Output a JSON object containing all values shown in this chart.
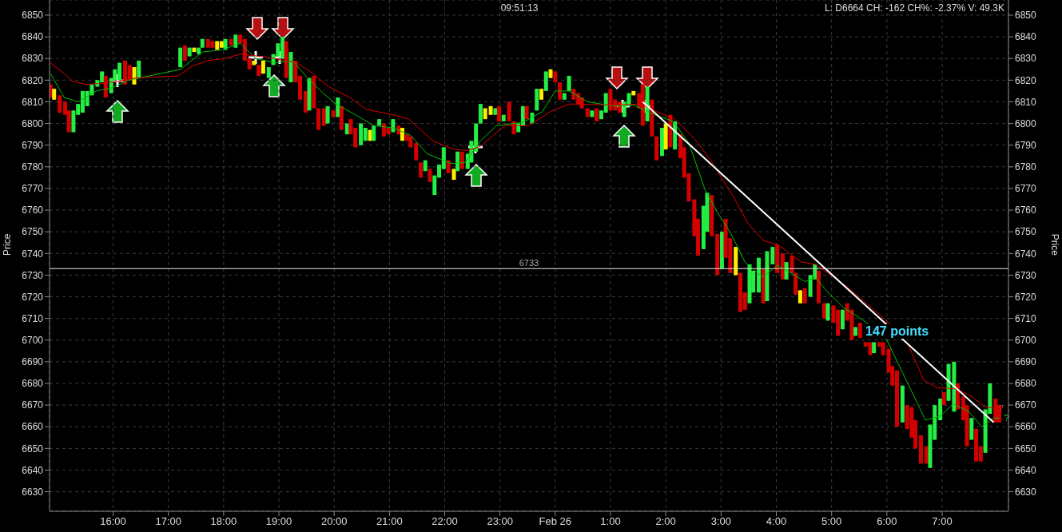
{
  "chart_data": {
    "type": "candlestick",
    "ylabel": "Price",
    "y2label": "Price",
    "annotations": [
      "09:51:13",
      "L: D6664 CH: -162 CH%: -2.37% V: 49.3K",
      "147 points",
      {
        "text": "?",
        "x": "--02-26T07:56",
        "y": 6668.5
      },
      {
        "text": "?",
        "x": "--02-26T08:02",
        "y": 6664
      }
    ],
    "xlim": [
      "--02-25T14:51",
      "--02-26T08:12"
    ],
    "xticks": [
      {
        "value": "--02-25T16:00",
        "label": "16:00"
      },
      {
        "value": "--02-25T17:00",
        "label": "17:00"
      },
      {
        "value": "--02-25T18:00",
        "label": "18:00"
      },
      {
        "value": "--02-25T19:00",
        "label": "19:00"
      },
      {
        "value": "--02-25T20:00",
        "label": "20:00"
      },
      {
        "value": "--02-25T21:00",
        "label": "21:00"
      },
      {
        "value": "--02-25T22:00",
        "label": "22:00"
      },
      {
        "value": "--02-25T23:00",
        "label": "23:00"
      },
      {
        "value": "--02-26T00:00",
        "label": "Feb 26"
      },
      {
        "value": "--02-26T01:00",
        "label": "1:00"
      },
      {
        "value": "--02-26T02:00",
        "label": "2:00"
      },
      {
        "value": "--02-26T03:00",
        "label": "3:00"
      },
      {
        "value": "--02-26T04:00",
        "label": "4:00"
      },
      {
        "value": "--02-26T05:00",
        "label": "5:00"
      },
      {
        "value": "--02-26T06:00",
        "label": "6:00"
      },
      {
        "value": "--02-26T07:00",
        "label": "7:00"
      }
    ],
    "ylim": [
      6621,
      6857
    ],
    "yticks": [
      6630,
      6640,
      6650,
      6660,
      6670,
      6680,
      6690,
      6700,
      6710,
      6720,
      6730,
      6740,
      6750,
      6760,
      6770,
      6780,
      6790,
      6800,
      6810,
      6820,
      6830,
      6840,
      6850
    ],
    "y2lim": [
      6621,
      6857
    ],
    "y2ticks": [
      6630,
      6640,
      6650,
      6660,
      6670,
      6680,
      6690,
      6700,
      6710,
      6720,
      6730,
      6740,
      6750,
      6760,
      6770,
      6780,
      6790,
      6800,
      6810,
      6820,
      6830,
      6840,
      6850
    ],
    "grid": true,
    "ref_lines": [
      {
        "axis": "y",
        "value": 6733,
        "label": "6733",
        "color": "#e8e8d8"
      }
    ],
    "x": [
      "--02-25T14:52",
      "--02-25T14:56",
      "--02-25T15:02",
      "--02-25T15:08",
      "--02-25T15:12",
      "--02-25T15:17",
      "--02-25T15:22",
      "--02-25T15:27",
      "--02-25T15:32",
      "--02-25T15:37",
      "--02-25T15:43",
      "--02-25T15:48",
      "--02-25T15:52",
      "--02-25T15:58",
      "--02-25T16:02",
      "--02-25T16:07",
      "--02-25T16:13",
      "--02-25T16:18",
      "--02-25T16:23",
      "--02-25T16:28",
      "--02-25T17:13",
      "--02-25T17:18",
      "--02-25T17:23",
      "--02-25T17:28",
      "--02-25T17:33",
      "--02-25T17:37",
      "--02-25T17:43",
      "--02-25T17:48",
      "--02-25T17:53",
      "--02-25T17:58",
      "--02-25T18:02",
      "--02-25T18:08",
      "--02-25T18:13",
      "--02-25T18:18",
      "--02-25T18:23",
      "--02-25T18:28",
      "--02-25T18:33",
      "--02-25T18:38",
      "--02-25T18:43",
      "--02-25T18:49",
      "--02-25T18:54",
      "--02-25T18:59",
      "--02-25T19:04",
      "--02-25T19:08",
      "--02-25T19:13",
      "--02-25T19:18",
      "--02-25T19:23",
      "--02-25T19:29",
      "--02-25T19:33",
      "--02-25T19:38",
      "--02-25T19:43",
      "--02-25T19:49",
      "--02-25T19:53",
      "--02-25T19:59",
      "--02-25T20:04",
      "--02-25T20:08",
      "--02-25T20:14",
      "--02-25T20:18",
      "--02-25T20:23",
      "--02-25T20:29",
      "--02-25T20:34",
      "--02-25T20:39",
      "--02-25T20:43",
      "--02-25T20:49",
      "--02-25T20:54",
      "--02-25T20:59",
      "--02-25T21:04",
      "--02-25T21:10",
      "--02-25T21:14",
      "--02-25T21:19",
      "--02-25T21:23",
      "--02-25T21:29",
      "--02-25T21:34",
      "--02-25T21:39",
      "--02-25T21:44",
      "--02-25T21:49",
      "--02-25T21:54",
      "--02-25T21:59",
      "--02-25T22:04",
      "--02-25T22:10",
      "--02-25T22:14",
      "--02-25T22:19",
      "--02-25T22:25",
      "--02-25T22:29",
      "--02-25T22:34",
      "--02-25T22:39",
      "--02-25T22:44",
      "--02-25T22:50",
      "--02-25T22:55",
      "--02-25T22:59",
      "--02-25T23:04",
      "--02-25T23:10",
      "--02-25T23:15",
      "--02-25T23:20",
      "--02-25T23:25",
      "--02-25T23:29",
      "--02-25T23:35",
      "--02-25T23:40",
      "--02-25T23:45",
      "--02-25T23:50",
      "--02-25T23:55",
      "--02-26T00:00",
      "--02-26T00:05",
      "--02-26T00:10",
      "--02-26T00:15",
      "--02-26T00:20",
      "--02-26T00:25",
      "--02-26T00:29",
      "--02-26T00:35",
      "--02-26T00:40",
      "--02-26T00:45",
      "--02-26T00:50",
      "--02-26T00:55",
      "--02-26T01:00",
      "--02-26T01:05",
      "--02-26T01:10",
      "--02-26T01:15",
      "--02-26T01:20",
      "--02-26T01:25",
      "--02-26T01:31",
      "--02-26T01:35",
      "--02-26T01:40",
      "--02-26T01:45",
      "--02-26T01:50",
      "--02-26T01:56",
      "--02-26T02:00",
      "--02-26T02:05",
      "--02-26T02:10",
      "--02-26T02:16",
      "--02-26T02:20",
      "--02-26T02:25",
      "--02-26T02:31",
      "--02-26T02:35",
      "--02-26T02:41",
      "--02-26T02:45",
      "--02-26T02:50",
      "--02-26T02:56",
      "--02-26T03:01",
      "--02-26T03:05",
      "--02-26T03:10",
      "--02-26T03:16",
      "--02-26T03:21",
      "--02-26T03:26",
      "--02-26T03:31",
      "--02-26T03:35",
      "--02-26T03:41",
      "--02-26T03:46",
      "--02-26T03:50",
      "--02-26T03:56",
      "--02-26T04:01",
      "--02-26T04:07",
      "--02-26T04:11",
      "--02-26T04:17",
      "--02-26T04:21",
      "--02-26T04:26",
      "--02-26T04:31",
      "--02-26T04:37",
      "--02-26T04:42",
      "--02-26T04:46",
      "--02-26T04:52",
      "--02-26T04:56",
      "--02-26T05:02",
      "--02-26T05:07",
      "--02-26T05:12",
      "--02-26T05:17",
      "--02-26T05:22",
      "--02-26T05:26",
      "--02-26T05:31",
      "--02-26T05:37",
      "--02-26T05:42",
      "--02-26T05:46",
      "--02-26T05:52",
      "--02-26T05:56",
      "--02-26T06:02",
      "--02-26T06:06",
      "--02-26T06:11",
      "--02-26T06:17",
      "--02-26T06:22",
      "--02-26T06:27",
      "--02-26T06:31",
      "--02-26T06:37",
      "--02-26T06:43",
      "--02-26T06:47",
      "--02-26T06:52",
      "--02-26T06:58",
      "--02-26T07:02",
      "--02-26T07:07",
      "--02-26T07:13",
      "--02-26T07:17",
      "--02-26T07:23",
      "--02-26T07:27",
      "--02-26T07:32",
      "--02-26T07:37",
      "--02-26T07:42",
      "--02-26T07:47",
      "--02-26T07:52",
      "--02-26T07:58",
      "--02-26T08:02"
    ],
    "ohlc": [
      [
        6818,
        6818,
        6812,
        6812
      ],
      [
        6811,
        6816,
        6811,
        6816
      ],
      [
        6813,
        6813,
        6805,
        6805
      ],
      [
        6810,
        6810,
        6804,
        6804
      ],
      [
        6806,
        6806,
        6796,
        6796
      ],
      [
        6796,
        6806,
        6796,
        6806
      ],
      [
        6804,
        6809,
        6804,
        6809
      ],
      [
        6805,
        6815,
        6805,
        6815
      ],
      [
        6808,
        6815,
        6808,
        6815
      ],
      [
        6813,
        6818,
        6813,
        6818
      ],
      [
        6817,
        6820,
        6817,
        6820
      ],
      [
        6819,
        6824,
        6819,
        6824
      ],
      [
        6822,
        6822,
        6812,
        6812
      ],
      [
        6814,
        6821,
        6814,
        6821
      ],
      [
        6820,
        6825,
        6820,
        6825
      ],
      [
        6820,
        6828,
        6820,
        6828
      ],
      [
        6829,
        6829,
        6818,
        6818
      ],
      [
        6827,
        6827,
        6820,
        6820
      ],
      [
        6818,
        6826,
        6818,
        6826
      ],
      [
        6821,
        6829,
        6821,
        6829
      ],
      [
        6826,
        6835,
        6826,
        6835
      ],
      [
        6836,
        6836,
        6829,
        6829
      ],
      [
        6831,
        6835,
        6831,
        6835
      ],
      [
        6833,
        6835,
        6833,
        6835
      ],
      [
        6832,
        6835,
        6832,
        6835
      ],
      [
        6835,
        6839,
        6835,
        6839
      ],
      [
        6839,
        6839,
        6835,
        6835
      ],
      [
        6838,
        6838,
        6835,
        6835
      ],
      [
        6834,
        6838,
        6834,
        6838
      ],
      [
        6835,
        6838,
        6835,
        6838
      ],
      [
        6834,
        6839,
        6834,
        6839
      ],
      [
        6839,
        6839,
        6836,
        6836
      ],
      [
        6835,
        6841,
        6835,
        6841
      ],
      [
        6841,
        6841,
        6837,
        6837
      ],
      [
        6839,
        6839,
        6829,
        6829
      ],
      [
        6830,
        6830,
        6825,
        6825
      ],
      [
        6827,
        6829,
        6827,
        6829
      ],
      [
        6827,
        6827,
        6822,
        6822
      ],
      [
        6823,
        6829,
        6823,
        6829
      ],
      [
        6821,
        6826,
        6821,
        6826
      ],
      [
        6827,
        6832,
        6827,
        6832
      ],
      [
        6831,
        6837,
        6831,
        6837
      ],
      [
        6830,
        6840,
        6830,
        6840
      ],
      [
        6838,
        6838,
        6821,
        6821
      ],
      [
        6819,
        6833,
        6819,
        6833
      ],
      [
        6829,
        6829,
        6819,
        6819
      ],
      [
        6822,
        6822,
        6811,
        6811
      ],
      [
        6815,
        6815,
        6805,
        6805
      ],
      [
        6806,
        6821,
        6806,
        6821
      ],
      [
        6822,
        6822,
        6807,
        6807
      ],
      [
        6807,
        6807,
        6797,
        6797
      ],
      [
        6807,
        6807,
        6799,
        6799
      ],
      [
        6800,
        6808,
        6800,
        6808
      ],
      [
        6806,
        6806,
        6803,
        6803
      ],
      [
        6803,
        6812,
        6803,
        6812
      ],
      [
        6808,
        6808,
        6797,
        6797
      ],
      [
        6795,
        6800,
        6795,
        6800
      ],
      [
        6802,
        6802,
        6795,
        6795
      ],
      [
        6798,
        6798,
        6789,
        6789
      ],
      [
        6790,
        6800,
        6790,
        6800
      ],
      [
        6792,
        6798,
        6792,
        6798
      ],
      [
        6792,
        6797,
        6792,
        6797
      ],
      [
        6792,
        6799,
        6792,
        6799
      ],
      [
        6799,
        6802,
        6799,
        6802
      ],
      [
        6800,
        6800,
        6794,
        6794
      ],
      [
        6798,
        6798,
        6795,
        6795
      ],
      [
        6796,
        6802,
        6796,
        6802
      ],
      [
        6799,
        6799,
        6795,
        6795
      ],
      [
        6792,
        6798,
        6792,
        6798
      ],
      [
        6795,
        6795,
        6792,
        6792
      ],
      [
        6794,
        6794,
        6789,
        6789
      ],
      [
        6791,
        6791,
        6783,
        6783
      ],
      [
        6782,
        6782,
        6775,
        6775
      ],
      [
        6778,
        6783,
        6778,
        6783
      ],
      [
        6779,
        6779,
        6773,
        6773
      ],
      [
        6767,
        6776,
        6767,
        6776
      ],
      [
        6775,
        6781,
        6775,
        6781
      ],
      [
        6779,
        6789,
        6779,
        6789
      ],
      [
        6783,
        6783,
        6777,
        6777
      ],
      [
        6774,
        6779,
        6774,
        6779
      ],
      [
        6778,
        6787,
        6778,
        6787
      ],
      [
        6787,
        6787,
        6779,
        6779
      ],
      [
        6779,
        6786,
        6779,
        6786
      ],
      [
        6782,
        6792,
        6782,
        6792
      ],
      [
        6787,
        6800,
        6787,
        6800
      ],
      [
        6800,
        6809,
        6800,
        6809
      ],
      [
        6802,
        6807,
        6802,
        6807
      ],
      [
        6804,
        6808,
        6804,
        6808
      ],
      [
        6804,
        6807,
        6804,
        6807
      ],
      [
        6808,
        6808,
        6801,
        6801
      ],
      [
        6801,
        6804,
        6801,
        6804
      ],
      [
        6810,
        6810,
        6801,
        6801
      ],
      [
        6801,
        6801,
        6795,
        6795
      ],
      [
        6796,
        6800,
        6796,
        6800
      ],
      [
        6799,
        6808,
        6799,
        6808
      ],
      [
        6808,
        6808,
        6802,
        6802
      ],
      [
        6800,
        6805,
        6800,
        6805
      ],
      [
        6806,
        6816,
        6806,
        6816
      ],
      [
        6811,
        6816,
        6811,
        6816
      ],
      [
        6815,
        6824,
        6815,
        6824
      ],
      [
        6821,
        6825,
        6821,
        6825
      ],
      [
        6824,
        6824,
        6819,
        6819
      ],
      [
        6819,
        6819,
        6811,
        6811
      ],
      [
        6811,
        6814,
        6811,
        6814
      ],
      [
        6815,
        6822,
        6815,
        6822
      ],
      [
        6816,
        6816,
        6811,
        6811
      ],
      [
        6814,
        6814,
        6809,
        6809
      ],
      [
        6812,
        6812,
        6807,
        6807
      ],
      [
        6807,
        6807,
        6803,
        6803
      ],
      [
        6803,
        6806,
        6803,
        6806
      ],
      [
        6807,
        6807,
        6801,
        6801
      ],
      [
        6802,
        6806,
        6802,
        6806
      ],
      [
        6805,
        6814,
        6805,
        6814
      ],
      [
        6816,
        6816,
        6806,
        6806
      ],
      [
        6811,
        6811,
        6806,
        6806
      ],
      [
        6810,
        6810,
        6805,
        6805
      ],
      [
        6803,
        6810,
        6803,
        6810
      ],
      [
        6808,
        6814,
        6808,
        6814
      ],
      [
        6813,
        6815,
        6813,
        6815
      ],
      [
        6814,
        6814,
        6807,
        6807
      ],
      [
        6818,
        6818,
        6799,
        6799
      ],
      [
        6801,
        6817,
        6801,
        6817
      ],
      [
        6811,
        6811,
        6794,
        6794
      ],
      [
        6794,
        6794,
        6783,
        6783
      ],
      [
        6785,
        6798,
        6785,
        6798
      ],
      [
        6788,
        6800,
        6788,
        6800
      ],
      [
        6804,
        6804,
        6789,
        6789
      ],
      [
        6788,
        6801,
        6788,
        6801
      ],
      [
        6795,
        6795,
        6784,
        6784
      ],
      [
        6789,
        6789,
        6775,
        6775
      ],
      [
        6777,
        6777,
        6764,
        6764
      ],
      [
        6765,
        6765,
        6748,
        6748
      ],
      [
        6756,
        6756,
        6739,
        6739
      ],
      [
        6742,
        6762,
        6742,
        6762
      ],
      [
        6750,
        6768,
        6750,
        6768
      ],
      [
        6767,
        6767,
        6748,
        6748
      ],
      [
        6749,
        6749,
        6730,
        6730
      ],
      [
        6733,
        6750,
        6733,
        6750
      ],
      [
        6756,
        6756,
        6738,
        6738
      ],
      [
        6747,
        6747,
        6731,
        6731
      ],
      [
        6730,
        6743,
        6730,
        6743
      ],
      [
        6731,
        6731,
        6713,
        6713
      ],
      [
        6722,
        6722,
        6714,
        6714
      ],
      [
        6717,
        6735,
        6717,
        6735
      ],
      [
        6722,
        6732,
        6722,
        6732
      ],
      [
        6722,
        6738,
        6722,
        6738
      ],
      [
        6733,
        6733,
        6717,
        6717
      ],
      [
        6718,
        6741,
        6718,
        6741
      ],
      [
        6735,
        6743,
        6735,
        6743
      ],
      [
        6744,
        6744,
        6731,
        6731
      ],
      [
        6740,
        6740,
        6728,
        6728
      ],
      [
        6728,
        6736,
        6728,
        6736
      ],
      [
        6739,
        6739,
        6731,
        6731
      ],
      [
        6731,
        6731,
        6721,
        6721
      ],
      [
        6717,
        6723,
        6717,
        6723
      ],
      [
        6724,
        6724,
        6717,
        6717
      ],
      [
        6720,
        6730,
        6720,
        6730
      ],
      [
        6728,
        6735,
        6728,
        6735
      ],
      [
        6732,
        6732,
        6717,
        6717
      ],
      [
        6717,
        6717,
        6710,
        6710
      ],
      [
        6709,
        6717,
        6709,
        6717
      ],
      [
        6716,
        6716,
        6708,
        6708
      ],
      [
        6714,
        6714,
        6702,
        6702
      ],
      [
        6705,
        6714,
        6705,
        6714
      ],
      [
        6717,
        6717,
        6709,
        6709
      ],
      [
        6714,
        6714,
        6700,
        6700
      ],
      [
        6702,
        6706,
        6702,
        6706
      ],
      [
        6708,
        6708,
        6701,
        6701
      ],
      [
        6699,
        6699,
        6697,
        6697
      ],
      [
        6699,
        6699,
        6693,
        6693
      ],
      [
        6694,
        6699,
        6694,
        6699
      ],
      [
        6699,
        6699,
        6697,
        6697
      ],
      [
        6699,
        6699,
        6693,
        6693
      ],
      [
        6696,
        6696,
        6685,
        6685
      ],
      [
        6688,
        6688,
        6679,
        6679
      ],
      [
        6686,
        6686,
        6660,
        6660
      ],
      [
        6662,
        6679,
        6662,
        6679
      ],
      [
        6670,
        6670,
        6659,
        6659
      ],
      [
        6669,
        6669,
        6655,
        6655
      ],
      [
        6663,
        6663,
        6650,
        6650
      ],
      [
        6656,
        6656,
        6643,
        6643
      ],
      [
        6651,
        6651,
        6643,
        6643
      ],
      [
        6641,
        6661,
        6641,
        6661
      ],
      [
        6654,
        6670,
        6654,
        6670
      ],
      [
        6663,
        6673,
        6663,
        6673
      ],
      [
        6676,
        6676,
        6670,
        6670
      ],
      [
        6672,
        6689,
        6672,
        6689
      ],
      [
        6667,
        6690,
        6667,
        6690
      ],
      [
        6680,
        6680,
        6668,
        6668
      ],
      [
        6674,
        6674,
        6663,
        6663
      ],
      [
        6670,
        6670,
        6651,
        6651
      ],
      [
        6654,
        6664,
        6654,
        6664
      ],
      [
        6659,
        6659,
        6644,
        6644
      ],
      [
        6651,
        6651,
        6644,
        6644
      ],
      [
        6648,
        6668,
        6648,
        6668
      ],
      [
        6666,
        6680,
        6666,
        6680
      ],
      [
        6673,
        6673,
        6662,
        6662
      ],
      [
        6670,
        6670,
        6662,
        6662
      ]
    ],
    "colors": [
      "#d40000",
      "#ffee00",
      "#d40000",
      "#d40000",
      "#d40000",
      "#22ee44",
      "#22ee44",
      "#22ee44",
      "#22ee44",
      "#22ee44",
      "#22ee44",
      "#22ee44",
      "#d40000",
      "#22ee44",
      "#22ee44",
      "#22ee44",
      "#d40000",
      "#d40000",
      "#ffee00",
      "#22ee44",
      "#22ee44",
      "#d40000",
      "#22ee44",
      "#ffee00",
      "#22ee44",
      "#22ee44",
      "#d40000",
      "#d40000",
      "#ffee00",
      "#ffee00",
      "#22ee44",
      "#d40000",
      "#22ee44",
      "#d40000",
      "#d40000",
      "#d40000",
      "#ffee00",
      "#d40000",
      "#ffee00",
      "#22ee44",
      "#22ee44",
      "#22ee44",
      "#22ee44",
      "#d40000",
      "#22ee44",
      "#d40000",
      "#d40000",
      "#d40000",
      "#22ee44",
      "#d40000",
      "#d40000",
      "#d40000",
      "#22ee44",
      "#d40000",
      "#22ee44",
      "#d40000",
      "#22ee44",
      "#d40000",
      "#d40000",
      "#22ee44",
      "#22ee44",
      "#ffee00",
      "#22ee44",
      "#22ee44",
      "#d40000",
      "#d40000",
      "#22ee44",
      "#d40000",
      "#ffee00",
      "#d40000",
      "#d40000",
      "#d40000",
      "#d40000",
      "#22ee44",
      "#d40000",
      "#22ee44",
      "#22ee44",
      "#22ee44",
      "#d40000",
      "#ffee00",
      "#22ee44",
      "#d40000",
      "#22ee44",
      "#22ee44",
      "#22ee44",
      "#22ee44",
      "#ffee00",
      "#ffee00",
      "#22ee44",
      "#d40000",
      "#22ee44",
      "#d40000",
      "#d40000",
      "#22ee44",
      "#22ee44",
      "#d40000",
      "#22ee44",
      "#22ee44",
      "#ffee00",
      "#22ee44",
      "#ffee00",
      "#d40000",
      "#d40000",
      "#22ee44",
      "#22ee44",
      "#d40000",
      "#d40000",
      "#d40000",
      "#d40000",
      "#22ee44",
      "#d40000",
      "#22ee44",
      "#22ee44",
      "#d40000",
      "#d40000",
      "#d40000",
      "#22ee44",
      "#22ee44",
      "#ffee00",
      "#d40000",
      "#d40000",
      "#22ee44",
      "#d40000",
      "#d40000",
      "#22ee44",
      "#ffee00",
      "#d40000",
      "#22ee44",
      "#d40000",
      "#d40000",
      "#d40000",
      "#d40000",
      "#d40000",
      "#22ee44",
      "#22ee44",
      "#d40000",
      "#d40000",
      "#22ee44",
      "#d40000",
      "#d40000",
      "#ffee00",
      "#d40000",
      "#d40000",
      "#22ee44",
      "#22ee44",
      "#22ee44",
      "#d40000",
      "#22ee44",
      "#22ee44",
      "#d40000",
      "#d40000",
      "#22ee44",
      "#d40000",
      "#d40000",
      "#ffee00",
      "#d40000",
      "#22ee44",
      "#22ee44",
      "#d40000",
      "#d40000",
      "#22ee44",
      "#d40000",
      "#d40000",
      "#22ee44",
      "#d40000",
      "#d40000",
      "#22ee44",
      "#d40000",
      "#d40000",
      "#d40000",
      "#22ee44",
      "#d40000",
      "#d40000",
      "#d40000",
      "#d40000",
      "#d40000",
      "#22ee44",
      "#d40000",
      "#d40000",
      "#d40000",
      "#d40000",
      "#d40000",
      "#22ee44",
      "#22ee44",
      "#22ee44",
      "#d40000",
      "#22ee44",
      "#22ee44",
      "#d40000",
      "#d40000",
      "#d40000",
      "#22ee44",
      "#d40000",
      "#d40000",
      "#22ee44",
      "#22ee44",
      "#d40000",
      "#d40000"
    ],
    "series": [
      {
        "type": "line",
        "color": "#00c000",
        "x": [
          "--02-25T14:52",
          "--02-25T15:07",
          "--02-25T15:22",
          "--02-25T15:42",
          "--02-25T15:59",
          "--02-25T16:17",
          "--02-25T16:29",
          "--02-25T17:13",
          "--02-25T17:37",
          "--02-25T17:58",
          "--02-25T18:18",
          "--02-25T18:35",
          "--02-25T18:56",
          "--02-25T19:15",
          "--02-25T19:31",
          "--02-25T19:48",
          "--02-25T20:02",
          "--02-25T20:23",
          "--02-25T20:43",
          "--02-25T21:04",
          "--02-25T21:23",
          "--02-25T21:41",
          "--02-25T22:07",
          "--02-25T22:22",
          "--02-25T22:39",
          "--02-25T22:56",
          "--02-25T23:25",
          "--02-25T23:46",
          "--02-26T00:00",
          "--02-26T00:15",
          "--02-26T00:35",
          "--02-26T01:04",
          "--02-26T01:25",
          "--02-26T01:48",
          "--02-26T02:08",
          "--02-26T02:25",
          "--02-26T02:43",
          "--02-26T02:56",
          "--02-26T03:11",
          "--02-26T03:26",
          "--02-26T03:45",
          "--02-26T04:01",
          "--02-26T04:12",
          "--02-26T04:31",
          "--02-26T04:42",
          "--02-26T04:56",
          "--02-26T05:13",
          "--02-26T05:35",
          "--02-26T06:00",
          "--02-26T06:17",
          "--02-26T06:42",
          "--02-26T06:58",
          "--02-26T07:12",
          "--02-26T07:29",
          "--02-26T07:43",
          "--02-26T07:56",
          "--02-26T08:02"
        ],
        "values": [
          6823,
          6812,
          6810,
          6815,
          6816.5,
          6820,
          6821,
          6825,
          6833,
          6834,
          6837,
          6830,
          6828,
          6829,
          6821,
          6814,
          6809,
          6804,
          6799,
          6798,
          6794.5,
          6786,
          6781.5,
          6782,
          6792,
          6799,
          6800.5,
          6805.5,
          6815,
          6815,
          6810,
          6808,
          6808.5,
          6804,
          6801,
          6791,
          6769,
          6759,
          6749,
          6736,
          6729,
          6734.5,
          6732,
          6727,
          6729,
          6722,
          6715,
          6709,
          6700,
          6685,
          6663,
          6665,
          6670.5,
          6667,
          6660,
          6664,
          6664
        ]
      },
      {
        "type": "line",
        "color": "#e00000",
        "x": [
          "--02-25T14:52",
          "--02-25T15:07",
          "--02-25T15:16",
          "--02-25T15:31",
          "--02-25T15:48",
          "--02-25T16:05",
          "--02-25T16:25",
          "--02-25T17:11",
          "--02-25T17:26",
          "--02-25T17:43",
          "--02-25T18:01",
          "--02-25T18:18",
          "--02-25T18:50",
          "--02-25T19:19",
          "--02-25T19:34",
          "--02-25T19:54",
          "--02-25T20:17",
          "--02-25T20:35",
          "--02-25T21:04",
          "--02-25T21:21",
          "--02-25T21:47",
          "--02-25T22:10",
          "--02-25T22:25",
          "--02-25T22:39",
          "--02-25T23:05",
          "--02-25T23:31",
          "--02-25T23:55",
          "--02-26T00:15",
          "--02-26T01:04",
          "--02-26T01:33",
          "--02-26T01:50",
          "--02-26T02:10",
          "--02-26T02:31",
          "--02-26T02:49",
          "--02-26T03:15",
          "--02-26T03:29",
          "--02-26T03:46",
          "--02-26T04:02",
          "--02-26T04:27",
          "--02-26T04:42",
          "--02-26T04:56",
          "--02-26T05:17",
          "--02-26T05:35",
          "--02-26T06:02",
          "--02-26T06:23",
          "--02-26T06:40",
          "--02-26T06:55",
          "--02-26T07:15",
          "--02-26T07:32",
          "--02-26T07:45",
          "--02-26T07:56"
        ],
        "values": [
          6828,
          6823,
          6819.5,
          6818,
          6818.5,
          6819.5,
          6821,
          6822,
          6826.5,
          6829,
          6830,
          6832,
          6830.5,
          6828,
          6824,
          6817,
          6812,
          6806.5,
          6804,
          6802,
          6792,
          6788,
          6787.5,
          6789.5,
          6799,
          6799,
          6805.5,
          6809,
          6808.5,
          6809,
          6805.5,
          6802,
          6793,
          6783,
          6765,
          6754,
          6746,
          6744,
          6736,
          6735,
          6731,
          6724.5,
          6718,
          6708,
          6698,
          6681.5,
          6678,
          6677.5,
          6674,
          6669.5,
          6668.5
        ]
      },
      {
        "type": "line",
        "color": "#ffffff",
        "x": [
          "--02-26T01:35",
          "--02-26T07:56"
        ],
        "values": [
          6810,
          6662
        ]
      }
    ]
  }
}
